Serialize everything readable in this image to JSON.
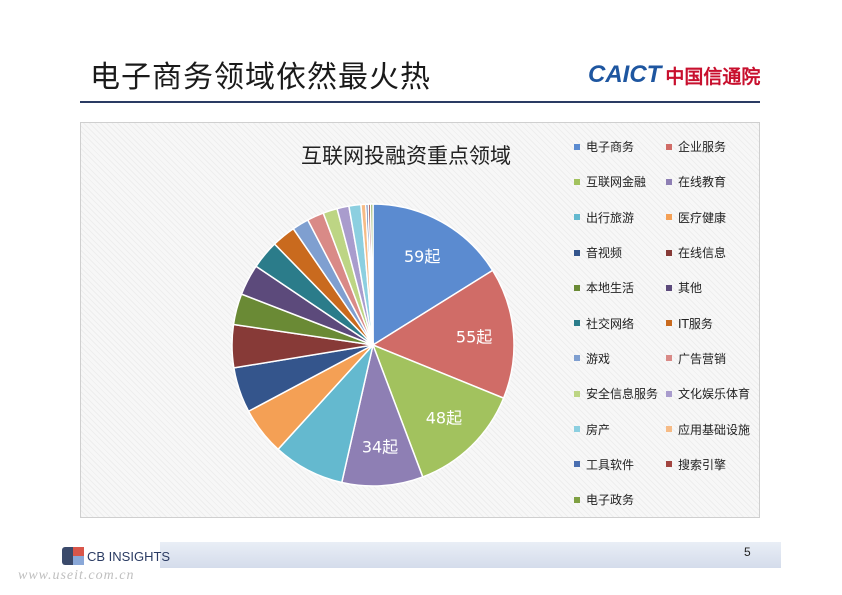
{
  "slide": {
    "title": "电子商务领域依然最火热",
    "page_number": "5",
    "watermark": "www.useit.com.cn"
  },
  "logos": {
    "caict_latin": "CAICT",
    "caict_chinese": "中国信通院",
    "cb_insights": "CB INSIGHTS"
  },
  "colors": {
    "title_rule": "#2a3b63",
    "caict_blue": "#1e56a0",
    "caict_red": "#c8102e"
  },
  "chart_data": {
    "type": "pie",
    "title": "互联网投融资重点领域",
    "legend_position": "right",
    "slices": [
      {
        "label": "电子商务",
        "value": 59,
        "data_label": "59起",
        "color": "#5b8bd0"
      },
      {
        "label": "企业服务",
        "value": 55,
        "data_label": "55起",
        "color": "#d06c67"
      },
      {
        "label": "互联网金融",
        "value": 48,
        "data_label": "48起",
        "color": "#a2c25e"
      },
      {
        "label": "在线教育",
        "value": 34,
        "data_label": "34起",
        "color": "#8e7fb4"
      },
      {
        "label": "出行旅游",
        "value": 30,
        "data_label": "",
        "color": "#64b9cf"
      },
      {
        "label": "医疗健康",
        "value": 20,
        "data_label": "",
        "color": "#f4a055"
      },
      {
        "label": "音视频",
        "value": 19,
        "data_label": "",
        "color": "#34558c"
      },
      {
        "label": "在线信息",
        "value": 18,
        "data_label": "",
        "color": "#873a37"
      },
      {
        "label": "本地生活",
        "value": 13,
        "data_label": "",
        "color": "#6a8a35"
      },
      {
        "label": "其他",
        "value": 13,
        "data_label": "",
        "color": "#5c4a7b"
      },
      {
        "label": "社交网络",
        "value": 12,
        "data_label": "",
        "color": "#2b7c8a"
      },
      {
        "label": "IT服务",
        "value": 10,
        "data_label": "",
        "color": "#c96a1e"
      },
      {
        "label": "游戏",
        "value": 7,
        "data_label": "",
        "color": "#7f9fd0"
      },
      {
        "label": "广告营销",
        "value": 7,
        "data_label": "",
        "color": "#d98a87"
      },
      {
        "label": "安全信息服务",
        "value": 6,
        "data_label": "",
        "color": "#bdd584"
      },
      {
        "label": "文化娱乐体育",
        "value": 5,
        "data_label": "",
        "color": "#a99ccd"
      },
      {
        "label": "房产",
        "value": 5,
        "data_label": "",
        "color": "#8ccfe0"
      },
      {
        "label": "应用基础设施",
        "value": 2,
        "data_label": "",
        "color": "#f6bb86"
      },
      {
        "label": "工具软件",
        "value": 1,
        "data_label": "",
        "color": "#4a6fb0"
      },
      {
        "label": "搜索引擎",
        "value": 1,
        "data_label": "",
        "color": "#a24540"
      },
      {
        "label": "电子政务",
        "value": 1,
        "data_label": "",
        "color": "#7fa042"
      }
    ]
  }
}
